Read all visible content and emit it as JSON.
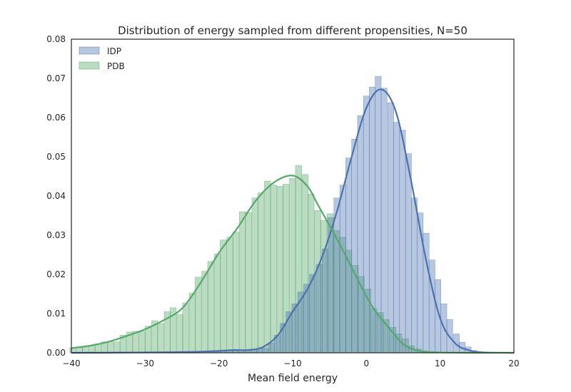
{
  "chart_data": {
    "type": "histogram",
    "title": "Distribution of energy sampled from different propensities, N=50",
    "xlabel": "Mean field energy",
    "ylabel": "",
    "xlim": [
      -40,
      20
    ],
    "ylim": [
      0,
      0.08
    ],
    "xticks": [
      "−40",
      "−30",
      "−20",
      "−10",
      "0",
      "10",
      "20"
    ],
    "yticks": [
      "0.00",
      "0.01",
      "0.02",
      "0.03",
      "0.04",
      "0.05",
      "0.06",
      "0.07",
      "0.08"
    ],
    "grid": false,
    "legend_position": "top-left",
    "colors": {
      "IDP": "#4c72b0",
      "PDB": "#55a868",
      "axis": "#262626"
    },
    "series": [
      {
        "name": "IDP",
        "bin_width": 0.81,
        "bins": [
          {
            "x": -21.0,
            "h": 0.0003
          },
          {
            "x": -20.2,
            "h": 0.0003
          },
          {
            "x": -19.4,
            "h": 0.0004
          },
          {
            "x": -18.6,
            "h": 0.0005
          },
          {
            "x": -17.8,
            "h": 0.0005
          },
          {
            "x": -17.0,
            "h": 0.0006
          },
          {
            "x": -16.2,
            "h": 0.0007
          },
          {
            "x": -15.3,
            "h": 0.0009
          },
          {
            "x": -14.5,
            "h": 0.001
          },
          {
            "x": -13.7,
            "h": 0.0012
          },
          {
            "x": -12.9,
            "h": 0.0025
          },
          {
            "x": -12.1,
            "h": 0.0045
          },
          {
            "x": -11.3,
            "h": 0.0075
          },
          {
            "x": -10.5,
            "h": 0.0105
          },
          {
            "x": -9.7,
            "h": 0.0125
          },
          {
            "x": -8.9,
            "h": 0.0155
          },
          {
            "x": -8.1,
            "h": 0.0175
          },
          {
            "x": -7.3,
            "h": 0.02
          },
          {
            "x": -6.4,
            "h": 0.0225
          },
          {
            "x": -5.6,
            "h": 0.0265
          },
          {
            "x": -4.8,
            "h": 0.0345
          },
          {
            "x": -4.0,
            "h": 0.0395
          },
          {
            "x": -3.2,
            "h": 0.0428
          },
          {
            "x": -2.4,
            "h": 0.0497
          },
          {
            "x": -1.6,
            "h": 0.0545
          },
          {
            "x": -0.8,
            "h": 0.0605
          },
          {
            "x": 0.0,
            "h": 0.0655
          },
          {
            "x": 0.8,
            "h": 0.0678
          },
          {
            "x": 1.6,
            "h": 0.0705
          },
          {
            "x": 2.4,
            "h": 0.0675
          },
          {
            "x": 3.3,
            "h": 0.0638
          },
          {
            "x": 4.1,
            "h": 0.0588
          },
          {
            "x": 4.9,
            "h": 0.0568
          },
          {
            "x": 5.7,
            "h": 0.0508
          },
          {
            "x": 6.5,
            "h": 0.0395
          },
          {
            "x": 7.3,
            "h": 0.0357
          },
          {
            "x": 8.1,
            "h": 0.0305
          },
          {
            "x": 8.9,
            "h": 0.0237
          },
          {
            "x": 9.7,
            "h": 0.0187
          },
          {
            "x": 10.5,
            "h": 0.0125
          },
          {
            "x": 11.3,
            "h": 0.0085
          },
          {
            "x": 12.2,
            "h": 0.0048
          },
          {
            "x": 13.0,
            "h": 0.0027
          },
          {
            "x": 13.8,
            "h": 0.0015
          },
          {
            "x": 14.6,
            "h": 0.0006
          }
        ],
        "kde": [
          [
            -40,
            0.0
          ],
          [
            -30,
            0.0001
          ],
          [
            -25,
            0.0002
          ],
          [
            -21,
            0.0004
          ],
          [
            -18,
            0.0007
          ],
          [
            -16,
            0.0007
          ],
          [
            -14,
            0.0015
          ],
          [
            -12,
            0.0045
          ],
          [
            -10,
            0.0105
          ],
          [
            -8,
            0.0162
          ],
          [
            -6,
            0.0245
          ],
          [
            -4,
            0.036
          ],
          [
            -2,
            0.05
          ],
          [
            0,
            0.0625
          ],
          [
            2,
            0.0672
          ],
          [
            4,
            0.0615
          ],
          [
            6,
            0.0445
          ],
          [
            8,
            0.0245
          ],
          [
            10,
            0.0088
          ],
          [
            12,
            0.0025
          ],
          [
            14,
            0.0006
          ],
          [
            16,
            0.0001
          ],
          [
            20,
            0.0
          ]
        ]
      },
      {
        "name": "PDB",
        "bin_width": 0.85,
        "bins": [
          {
            "x": -39.8,
            "h": 0.0013
          },
          {
            "x": -38.9,
            "h": 0.0013
          },
          {
            "x": -38.1,
            "h": 0.0017
          },
          {
            "x": -37.2,
            "h": 0.0017
          },
          {
            "x": -36.4,
            "h": 0.0023
          },
          {
            "x": -35.5,
            "h": 0.0028
          },
          {
            "x": -34.7,
            "h": 0.0028
          },
          {
            "x": -33.8,
            "h": 0.0028
          },
          {
            "x": -33.0,
            "h": 0.0045
          },
          {
            "x": -32.1,
            "h": 0.0053
          },
          {
            "x": -31.3,
            "h": 0.0055
          },
          {
            "x": -30.4,
            "h": 0.0055
          },
          {
            "x": -29.6,
            "h": 0.0068
          },
          {
            "x": -28.7,
            "h": 0.0082
          },
          {
            "x": -27.9,
            "h": 0.0075
          },
          {
            "x": -27.0,
            "h": 0.0105
          },
          {
            "x": -26.2,
            "h": 0.0115
          },
          {
            "x": -25.3,
            "h": 0.0098
          },
          {
            "x": -24.5,
            "h": 0.0127
          },
          {
            "x": -23.6,
            "h": 0.0152
          },
          {
            "x": -22.8,
            "h": 0.0193
          },
          {
            "x": -21.9,
            "h": 0.0208
          },
          {
            "x": -21.1,
            "h": 0.0233
          },
          {
            "x": -20.2,
            "h": 0.0252
          },
          {
            "x": -19.4,
            "h": 0.0288
          },
          {
            "x": -18.5,
            "h": 0.0295
          },
          {
            "x": -17.7,
            "h": 0.0308
          },
          {
            "x": -16.8,
            "h": 0.036
          },
          {
            "x": -16.0,
            "h": 0.0358
          },
          {
            "x": -15.1,
            "h": 0.0395
          },
          {
            "x": -14.3,
            "h": 0.0408
          },
          {
            "x": -13.4,
            "h": 0.0438
          },
          {
            "x": -12.6,
            "h": 0.0428
          },
          {
            "x": -11.7,
            "h": 0.0425
          },
          {
            "x": -10.9,
            "h": 0.043
          },
          {
            "x": -10.0,
            "h": 0.0445
          },
          {
            "x": -9.2,
            "h": 0.0478
          },
          {
            "x": -8.3,
            "h": 0.0455
          },
          {
            "x": -7.5,
            "h": 0.0405
          },
          {
            "x": -6.6,
            "h": 0.0363
          },
          {
            "x": -5.8,
            "h": 0.0338
          },
          {
            "x": -4.9,
            "h": 0.0355
          },
          {
            "x": -4.1,
            "h": 0.0312
          },
          {
            "x": -3.2,
            "h": 0.0295
          },
          {
            "x": -2.4,
            "h": 0.0262
          },
          {
            "x": -1.5,
            "h": 0.0223
          },
          {
            "x": -0.7,
            "h": 0.0195
          },
          {
            "x": 0.2,
            "h": 0.0163
          },
          {
            "x": 1.0,
            "h": 0.0113
          },
          {
            "x": 1.9,
            "h": 0.0103
          },
          {
            "x": 2.7,
            "h": 0.0085
          },
          {
            "x": 3.6,
            "h": 0.0065
          },
          {
            "x": 4.4,
            "h": 0.0048
          },
          {
            "x": 5.3,
            "h": 0.0036
          },
          {
            "x": 6.1,
            "h": 0.0018
          },
          {
            "x": 7.0,
            "h": 0.001
          },
          {
            "x": 7.8,
            "h": 0.0005
          },
          {
            "x": 8.7,
            "h": 0.0002
          }
        ],
        "kde": [
          [
            -40,
            0.0012
          ],
          [
            -37.5,
            0.0018
          ],
          [
            -35,
            0.0028
          ],
          [
            -32.5,
            0.0043
          ],
          [
            -30,
            0.006
          ],
          [
            -27.5,
            0.0083
          ],
          [
            -25,
            0.0113
          ],
          [
            -22.5,
            0.0178
          ],
          [
            -20,
            0.0255
          ],
          [
            -17.5,
            0.0318
          ],
          [
            -15,
            0.0388
          ],
          [
            -12.5,
            0.0435
          ],
          [
            -10,
            0.0452
          ],
          [
            -8,
            0.0425
          ],
          [
            -6.5,
            0.0375
          ],
          [
            -5,
            0.0325
          ],
          [
            -3,
            0.0255
          ],
          [
            -1,
            0.018
          ],
          [
            1,
            0.0112
          ],
          [
            3,
            0.0065
          ],
          [
            5,
            0.0022
          ],
          [
            7,
            0.0006
          ],
          [
            10,
            0.0001
          ],
          [
            20,
            0.0
          ]
        ]
      }
    ]
  }
}
